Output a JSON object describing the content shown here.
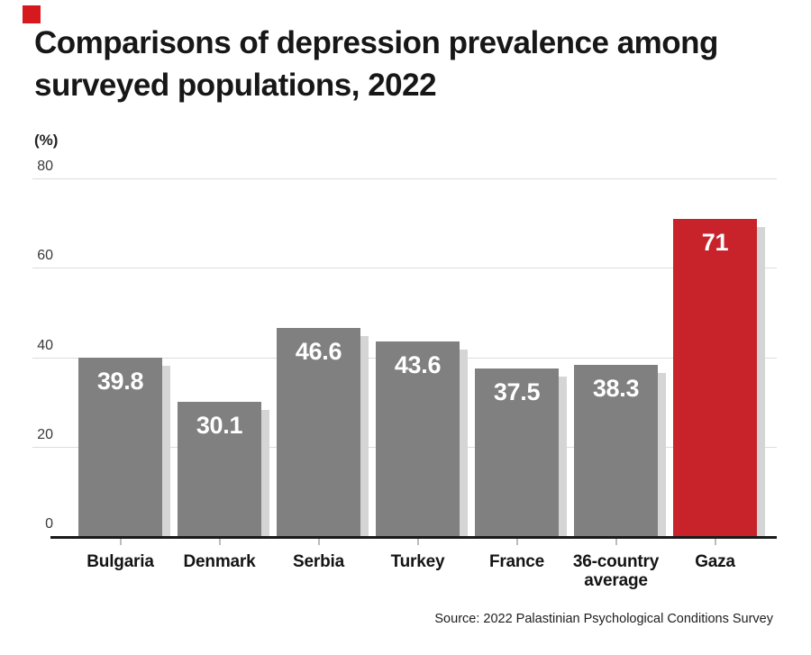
{
  "header": {
    "title": "Comparisons of depression prevalence among surveyed populations, 2022"
  },
  "logo": {
    "name": "red-square-logo",
    "color": "#d6191f"
  },
  "chart_data": {
    "type": "bar",
    "title": "Comparisons of depression prevalence among surveyed populations, 2022",
    "ylabel": "(%)",
    "xlabel": "",
    "categories": [
      "Bulgaria",
      "Denmark",
      "Serbia",
      "Turkey",
      "France",
      "36-country average",
      "Gaza"
    ],
    "values": [
      39.8,
      30.1,
      46.6,
      43.6,
      37.5,
      38.3,
      71
    ],
    "value_labels": [
      "39.8",
      "30.1",
      "46.6",
      "43.6",
      "37.5",
      "38.3",
      "71"
    ],
    "highlight_index": 6,
    "y_ticks": [
      0,
      20,
      40,
      60,
      80
    ],
    "y_tick_labels": [
      "0",
      "20",
      "40",
      "60",
      "80"
    ],
    "ylim": [
      0,
      80
    ],
    "grid": true,
    "legend": "none",
    "source": "Source: 2022 Palastinian Psychological Conditions Survey",
    "colors": {
      "bar": "#808080",
      "highlight_bar": "#c8232b",
      "bar_shadow": "#d5d5d5",
      "gridline": "#dcdcdc",
      "axis": "#1a1a1a",
      "value_label_text": "#ffffff"
    }
  }
}
